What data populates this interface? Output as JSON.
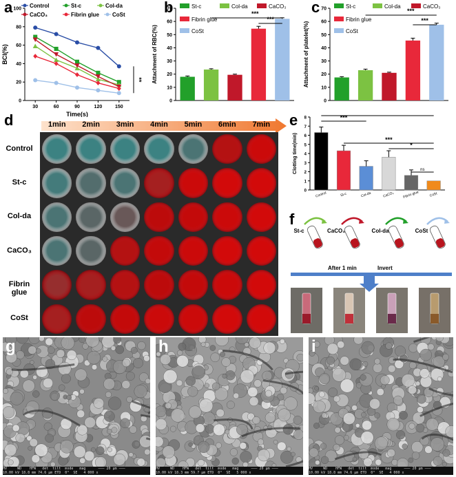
{
  "panel_labels": {
    "a": "a",
    "b": "b",
    "c": "c",
    "d": "d",
    "e": "e",
    "f": "f",
    "g": "g",
    "h": "h",
    "i": "i"
  },
  "colors": {
    "control": "#2a4ea6",
    "stc": "#22a02a",
    "colda": "#7cc242",
    "caco3": "#c0182a",
    "fibrin": "#e8283a",
    "cost": "#9fc0e8",
    "e_control": "#000000",
    "e_stc": "#e8283a",
    "e_colda": "#5b8ed6",
    "e_caco3": "#d8d8d8",
    "e_fibrin": "#666666",
    "e_cost": "#f08a1c"
  },
  "chart_data": [
    {
      "panel": "a",
      "type": "line",
      "x": [
        30,
        60,
        90,
        120,
        150
      ],
      "xlabel": "Time(s)",
      "ylabel": "BCI(%)",
      "ylim": [
        0,
        100
      ],
      "yticks": [
        0,
        20,
        40,
        60,
        80,
        100
      ],
      "significance": "**",
      "series": [
        {
          "name": "Control",
          "key": "control",
          "marker": "circle",
          "values": [
            79,
            72,
            63,
            57,
            37
          ]
        },
        {
          "name": "St-c",
          "key": "stc",
          "marker": "square",
          "values": [
            69,
            56,
            42,
            30,
            20
          ]
        },
        {
          "name": "Col-da",
          "key": "colda",
          "marker": "triangle",
          "values": [
            59,
            44,
            35,
            23,
            17
          ]
        },
        {
          "name": "CaCO₃",
          "key": "caco3",
          "marker": "trianglesdown",
          "values": [
            66,
            50,
            38,
            26,
            15
          ]
        },
        {
          "name": "Fibrin glue",
          "key": "fibrin",
          "marker": "diamond",
          "values": [
            48,
            40,
            28,
            19,
            13
          ]
        },
        {
          "name": "CoSt",
          "key": "cost",
          "marker": "circle",
          "values": [
            22,
            19,
            14,
            11,
            8
          ]
        }
      ]
    },
    {
      "panel": "b",
      "type": "bar",
      "ylabel": "Attachment of RBC(%)",
      "ylim": [
        0,
        70
      ],
      "yticks": [
        0,
        10,
        20,
        30,
        40,
        50,
        60,
        70
      ],
      "series": [
        {
          "name": "St-c",
          "key": "stc",
          "value": 18,
          "err": 0.6
        },
        {
          "name": "Col-da",
          "key": "colda",
          "value": 23.5,
          "err": 0.6
        },
        {
          "name": "CaCO₃",
          "key": "caco3",
          "value": 19.5,
          "err": 0.5
        },
        {
          "name": "Fibrin glue",
          "key": "fibrin",
          "value": 54.5,
          "err": 1.8
        },
        {
          "name": "CoSt",
          "key": "cost",
          "value": 62,
          "err": 0.8
        }
      ],
      "significance": [
        "***",
        "***"
      ]
    },
    {
      "panel": "c",
      "type": "bar",
      "ylabel": "Attachment of platelet(%)",
      "ylim": [
        0,
        70
      ],
      "yticks": [
        0,
        10,
        20,
        30,
        40,
        50,
        60,
        70
      ],
      "series": [
        {
          "name": "St-c",
          "key": "stc",
          "value": 17.5,
          "err": 0.6
        },
        {
          "name": "Col-da",
          "key": "colda",
          "value": 23,
          "err": 0.8
        },
        {
          "name": "CaCO₃",
          "key": "caco3",
          "value": 21,
          "err": 0.5
        },
        {
          "name": "Fibrin glue",
          "key": "fibrin",
          "value": 45.5,
          "err": 1.8
        },
        {
          "name": "CoSt",
          "key": "cost",
          "value": 57.5,
          "err": 1.2
        }
      ],
      "significance": [
        "***",
        "***"
      ]
    },
    {
      "panel": "e",
      "type": "bar",
      "ylabel": "Clotting time(min)",
      "ylim": [
        0,
        8
      ],
      "yticks": [
        0,
        1,
        2,
        3,
        4,
        5,
        6,
        7,
        8
      ],
      "series": [
        {
          "name": "Control",
          "key": "e_control",
          "value": 6.3,
          "err": 0.6
        },
        {
          "name": "St-c",
          "key": "e_stc",
          "value": 4.3,
          "err": 0.6
        },
        {
          "name": "Col-da",
          "key": "e_colda",
          "value": 2.6,
          "err": 0.6
        },
        {
          "name": "CaCO₃",
          "key": "e_caco3",
          "value": 3.6,
          "err": 0.7
        },
        {
          "name": "Fibrin glue",
          "key": "e_fibrin",
          "value": 1.6,
          "err": 0.6
        },
        {
          "name": "CoSt",
          "key": "e_cost",
          "value": 1.0,
          "err": 0.0
        }
      ],
      "significance": [
        "***",
        "***",
        "***",
        "*",
        "ns"
      ]
    }
  ],
  "panel_d": {
    "columns": [
      "1min",
      "2min",
      "3min",
      "4min",
      "5min",
      "6min",
      "7min"
    ],
    "rows": [
      "Control",
      "St-c",
      "Col-da",
      "CaCO₃",
      "Fibrin glue",
      "CoSt"
    ],
    "fill": [
      [
        0,
        0,
        0,
        0,
        0.1,
        0.8,
        0.95
      ],
      [
        0.05,
        0.15,
        0.1,
        0.7,
        0.95,
        1,
        1
      ],
      [
        0.1,
        0.2,
        0.3,
        0.85,
        0.9,
        0.95,
        1
      ],
      [
        0.1,
        0.2,
        0.8,
        0.9,
        0.95,
        1,
        1
      ],
      [
        0.6,
        0.7,
        0.8,
        0.85,
        0.9,
        0.95,
        1
      ],
      [
        0.7,
        0.85,
        0.9,
        0.95,
        0.95,
        1,
        1
      ]
    ]
  },
  "panel_f": {
    "labels": [
      "St-c",
      "CaCO₃",
      "Col-da",
      "CoSt"
    ],
    "arrow_colors": [
      "#7cc242",
      "#c0182a",
      "#22a02a",
      "#9fc0e8"
    ],
    "caption_left": "After 1 min",
    "caption_right": "Invert"
  },
  "sem": [
    {
      "panel": "g",
      "footer": "HV     WD    HFW   det  tilt  mode   mag      ——— 20 μm ———\n10.00 kV 18.8 mm 74.6 μm ETD  0°  SE   4 000 x"
    },
    {
      "panel": "h",
      "footer": "HV     WD    HFW   det  tilt  mode   mag      ——— 20 μm ———\n10.00 kV 18.3 mm 59.7 μm ETD  0°  SE   5 000 x"
    },
    {
      "panel": "i",
      "footer": "HV     WD    HFW   det  tilt  mode   mag      ——— 20 μm ———\n10.00 kV 18.8 mm 74.6 μm ETD  0°  SE   4 000 x"
    }
  ]
}
